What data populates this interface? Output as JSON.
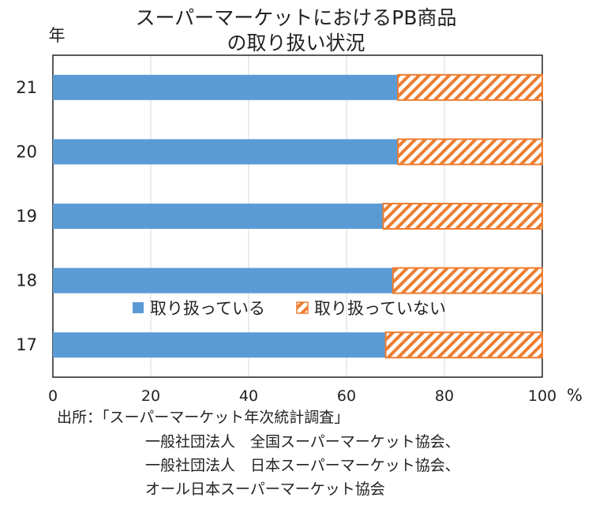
{
  "chart_data": {
    "type": "bar",
    "orientation": "horizontal",
    "stacked": true,
    "title_lines": [
      "スーパーマーケットにおけるPB商品",
      "の取り扱い状況"
    ],
    "ylabel": "年",
    "xunit": "%",
    "categories": [
      "21",
      "20",
      "19",
      "18",
      "17"
    ],
    "xlim": [
      0,
      100
    ],
    "xticks": [
      "0",
      "20",
      "40",
      "60",
      "80",
      "100"
    ],
    "grid": true,
    "legend_position": "inside-bottom",
    "series": [
      {
        "name": "取り扱っている",
        "values": [
          70.5,
          70.5,
          67.5,
          69.5,
          68
        ],
        "color": "#5b9bd5",
        "pattern": "solid"
      },
      {
        "name": "取り扱っていない",
        "values": [
          29.5,
          29.5,
          32.5,
          30.5,
          32
        ],
        "color": "#ed7d31",
        "pattern": "hatched"
      }
    ]
  },
  "source": {
    "lines": [
      "出所：「スーパーマーケット年次統計調査」",
      "一般社団法人　全国スーパーマーケット協会、",
      "一般社団法人　日本スーパーマーケット協会、",
      "オール日本スーパーマーケット協会"
    ]
  }
}
